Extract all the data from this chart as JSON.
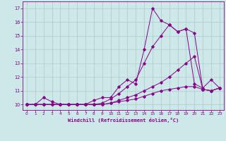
{
  "xlabel": "Windchill (Refroidissement éolien,°C)",
  "bg_color": "#cce8e8",
  "grid_color": "#aacccc",
  "line_color": "#880088",
  "xlim_min": -0.5,
  "xlim_max": 23.5,
  "ylim_min": 9.6,
  "ylim_max": 17.5,
  "xticks": [
    0,
    1,
    2,
    3,
    4,
    5,
    6,
    7,
    8,
    9,
    10,
    11,
    12,
    13,
    14,
    15,
    16,
    17,
    18,
    19,
    20,
    21,
    22,
    23
  ],
  "yticks": [
    10,
    11,
    12,
    13,
    14,
    15,
    16,
    17
  ],
  "s1_y": [
    10.0,
    10.0,
    10.5,
    10.2,
    10.0,
    10.0,
    10.0,
    10.0,
    10.3,
    10.5,
    10.5,
    11.3,
    11.8,
    11.5,
    14.0,
    17.0,
    16.1,
    15.8,
    15.3,
    15.5,
    11.5,
    11.2,
    11.8,
    11.2
  ],
  "s2_y": [
    10.0,
    10.0,
    10.0,
    10.0,
    10.0,
    10.0,
    10.0,
    10.0,
    10.0,
    10.1,
    10.4,
    10.8,
    11.3,
    11.8,
    13.0,
    14.2,
    15.0,
    15.8,
    15.3,
    15.5,
    15.2,
    11.1,
    11.0,
    11.2
  ],
  "s3_y": [
    10.0,
    10.0,
    10.0,
    10.0,
    10.0,
    10.0,
    10.0,
    10.0,
    10.0,
    10.0,
    10.1,
    10.3,
    10.5,
    10.7,
    11.0,
    11.3,
    11.6,
    12.0,
    12.5,
    13.0,
    13.5,
    11.1,
    11.0,
    11.2
  ],
  "s4_y": [
    10.0,
    10.0,
    10.0,
    10.0,
    10.0,
    10.0,
    10.0,
    10.0,
    10.0,
    10.0,
    10.1,
    10.2,
    10.3,
    10.4,
    10.6,
    10.8,
    11.0,
    11.1,
    11.2,
    11.3,
    11.3,
    11.1,
    11.0,
    11.2
  ]
}
